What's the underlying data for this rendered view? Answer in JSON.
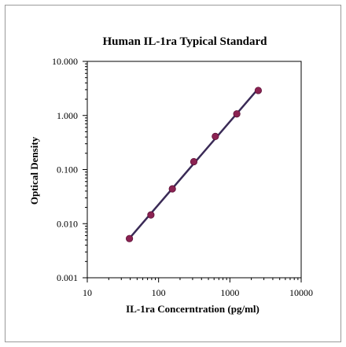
{
  "chart_data": {
    "type": "scatter",
    "title": "Human IL-1ra Typical Standard",
    "xlabel": "IL-1ra Concerntration (pg/ml)",
    "ylabel": "Optical Density",
    "x_scale": "log",
    "y_scale": "log",
    "xlim": [
      10,
      10000
    ],
    "ylim": [
      0.001,
      10
    ],
    "x_ticks": [
      {
        "value": 10,
        "label": "10"
      },
      {
        "value": 100,
        "label": "100"
      },
      {
        "value": 1000,
        "label": "1000"
      },
      {
        "value": 10000,
        "label": "10000"
      }
    ],
    "y_ticks": [
      {
        "value": 0.001,
        "label": "0.001"
      },
      {
        "value": 0.01,
        "label": "0.010"
      },
      {
        "value": 0.1,
        "label": "0.100"
      },
      {
        "value": 1,
        "label": "1.000"
      },
      {
        "value": 10,
        "label": "10.000"
      }
    ],
    "grid": false,
    "series": [
      {
        "x": [
          39,
          78,
          156,
          312,
          625,
          1250,
          2500
        ],
        "y": [
          0.0053,
          0.0145,
          0.044,
          0.14,
          0.41,
          1.07,
          2.9
        ],
        "color": "#8b2252",
        "marker": "circle",
        "trendline": true
      }
    ],
    "trendline_color": "#3a2a56"
  }
}
